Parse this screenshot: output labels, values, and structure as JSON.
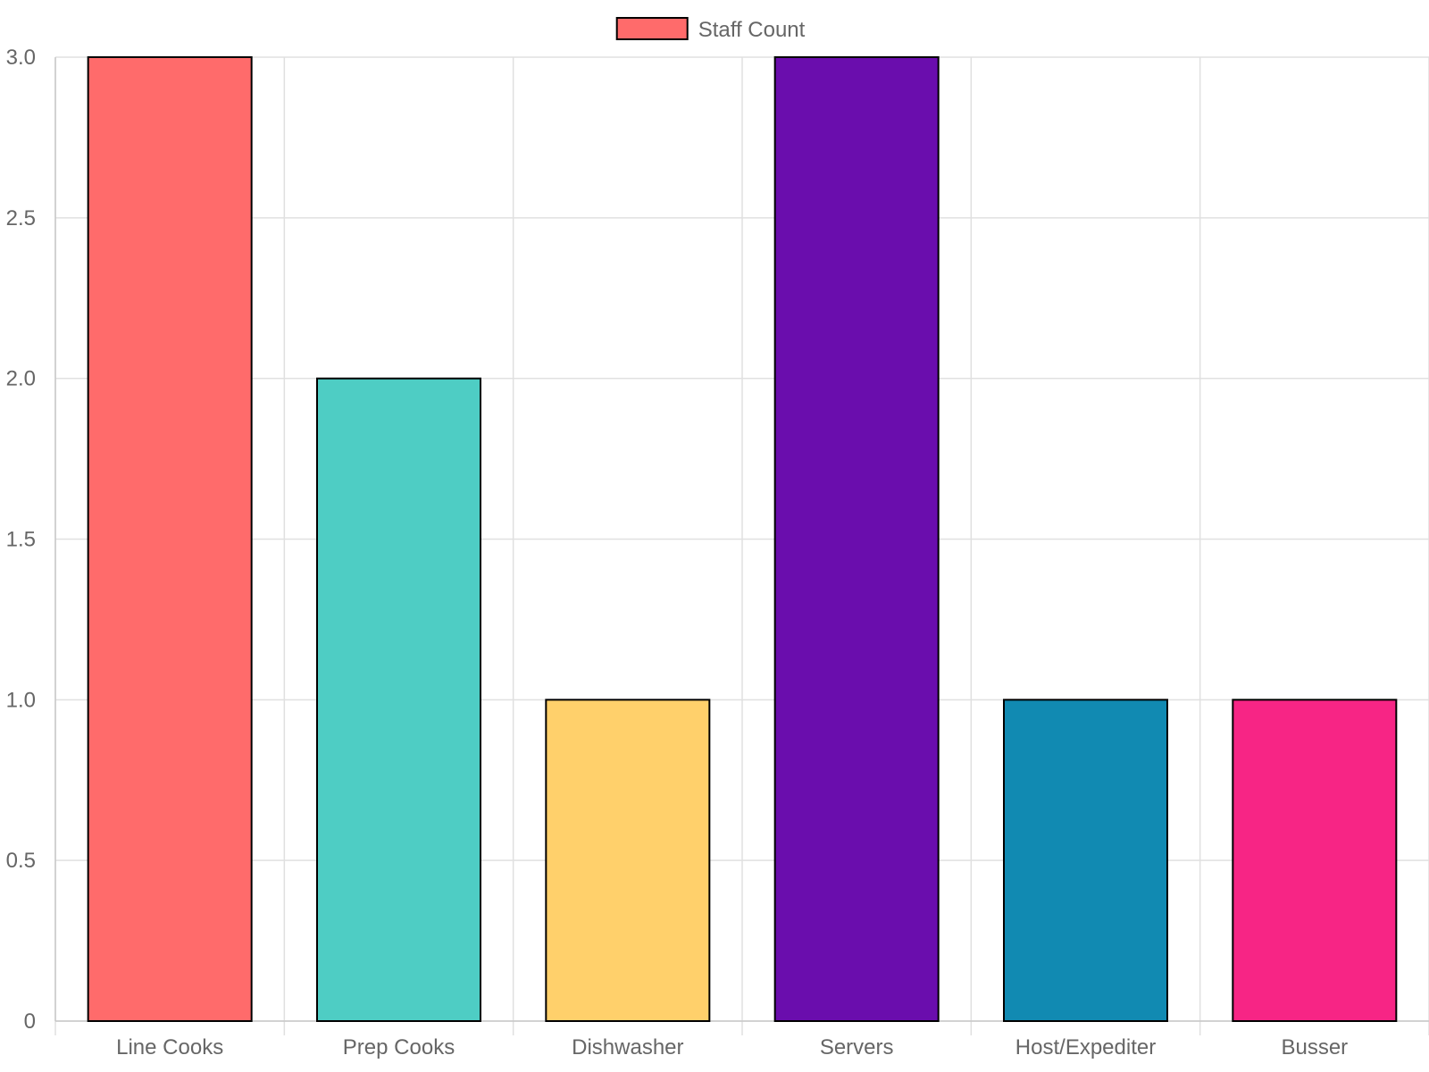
{
  "chart_data": {
    "type": "bar",
    "categories": [
      "Line Cooks",
      "Prep Cooks",
      "Dishwasher",
      "Servers",
      "Host/Expediter",
      "Busser"
    ],
    "series": [
      {
        "name": "Staff Count",
        "values": [
          3,
          2,
          1,
          3,
          1,
          1
        ],
        "colors": [
          "#FF6B6B",
          "#4ECDC4",
          "#FFD06B",
          "#6A0DAD",
          "#118AB2",
          "#F72585"
        ],
        "border_color": "#000000"
      }
    ],
    "ylim": [
      0,
      3
    ],
    "y_ticks": [
      "0",
      "0.5",
      "1.0",
      "1.5",
      "2.0",
      "2.5",
      "3.0"
    ],
    "grid": true,
    "legend_position": "top-center",
    "grid_color": "#e0e0e0",
    "text_color": "#666666"
  }
}
